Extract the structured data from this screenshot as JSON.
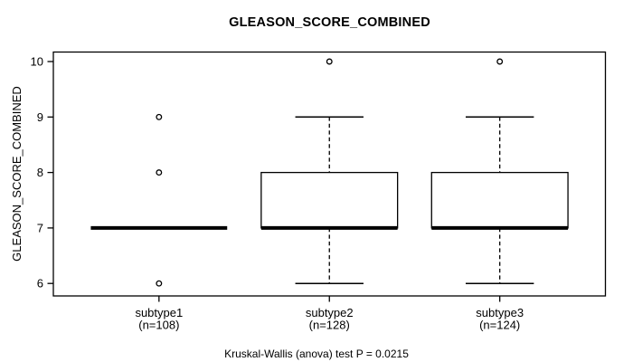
{
  "chart_data": {
    "type": "box",
    "title": "GLEASON_SCORE_COMBINED",
    "ylabel": "GLEASON_SCORE_COMBINED",
    "xlabel": "",
    "caption": "Kruskal-Wallis (anova) test P = 0.0215",
    "test": "Kruskal-Wallis (anova)",
    "p_value": "0.0215",
    "ylim": [
      6,
      10
    ],
    "yticks": [
      6,
      7,
      8,
      9,
      10
    ],
    "grid": false,
    "legend": "none",
    "groups": [
      {
        "label": "subtype1",
        "sublabel": "(n=108)",
        "n": 108,
        "whisker_low": 7,
        "q1": 7,
        "median": 7,
        "q3": 7,
        "whisker_high": 7,
        "outliers": [
          6,
          8,
          9
        ]
      },
      {
        "label": "subtype2",
        "sublabel": "(n=128)",
        "n": 128,
        "whisker_low": 6,
        "q1": 7,
        "median": 7,
        "q3": 8,
        "whisker_high": 9,
        "outliers": [
          10
        ]
      },
      {
        "label": "subtype3",
        "sublabel": "(n=124)",
        "n": 124,
        "whisker_low": 6,
        "q1": 7,
        "median": 7,
        "q3": 8,
        "whisker_high": 9,
        "outliers": [
          10
        ]
      }
    ],
    "colors": {
      "line": "#000000",
      "box_fill": "#ffffff",
      "text": "#000000",
      "background": "#ffffff"
    }
  }
}
